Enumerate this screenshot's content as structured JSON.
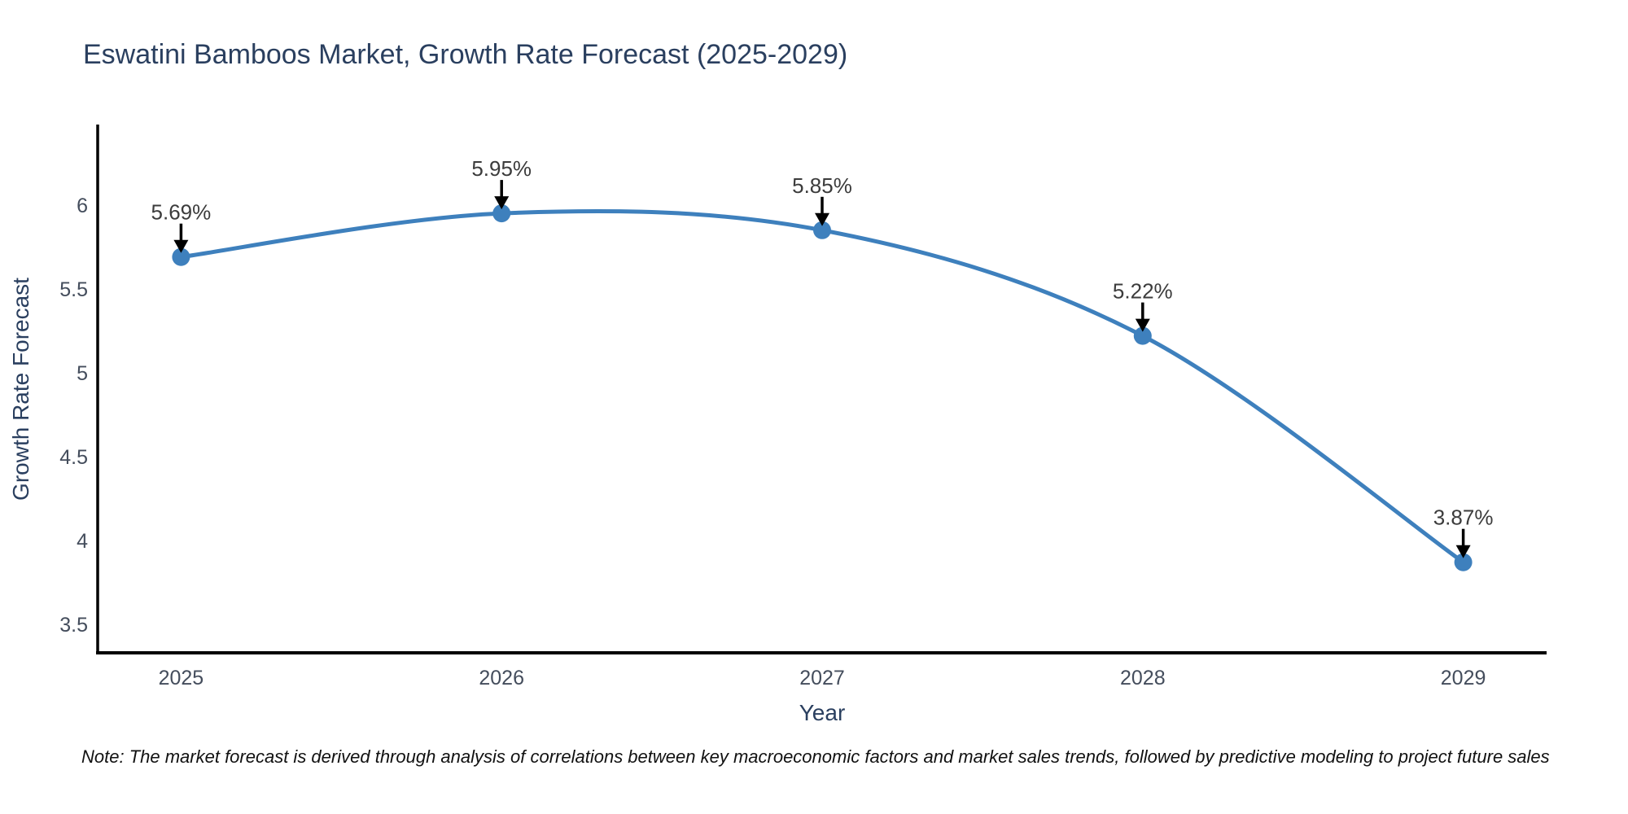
{
  "chart_data": {
    "type": "line",
    "line_shape": "spline",
    "title": "Eswatini Bamboos Market, Growth Rate Forecast (2025-2029)",
    "xlabel": "Year",
    "ylabel": "Growth Rate Forecast",
    "x": [
      2025,
      2026,
      2027,
      2028,
      2029
    ],
    "y": [
      5.69,
      5.95,
      5.85,
      5.22,
      3.87
    ],
    "point_labels": [
      "5.69%",
      "5.95%",
      "5.85%",
      "5.22%",
      "3.87%"
    ],
    "x_tick_labels": [
      "2025",
      "2026",
      "2027",
      "2028",
      "2029"
    ],
    "y_tick_labels": [
      "6",
      "5.5",
      "5",
      "4.5",
      "4",
      "3.5"
    ],
    "y_tick_values": [
      6,
      5.5,
      5,
      4.5,
      4,
      3.5
    ],
    "xlim": [
      2024.74,
      2029.26
    ],
    "ylim": [
      3.33,
      6.47
    ],
    "grid": false,
    "legend": "none",
    "marker_style": "circle",
    "annotation_arrows": true,
    "colors": {
      "line": "#3e80bd",
      "marker": "#3e80bd",
      "arrow": "#000000",
      "axis_line": "#000000",
      "title_text": "#2a3f5f",
      "axis_title_text": "#2a3f5f",
      "tick_text": "#444d5c",
      "annotation_text": "#3c3c3c",
      "note_text": "#111111",
      "background": "#ffffff"
    }
  },
  "note": "Note: The market forecast is derived through analysis of correlations between key macroeconomic factors and market sales trends, followed by predictive modeling to project future sales"
}
